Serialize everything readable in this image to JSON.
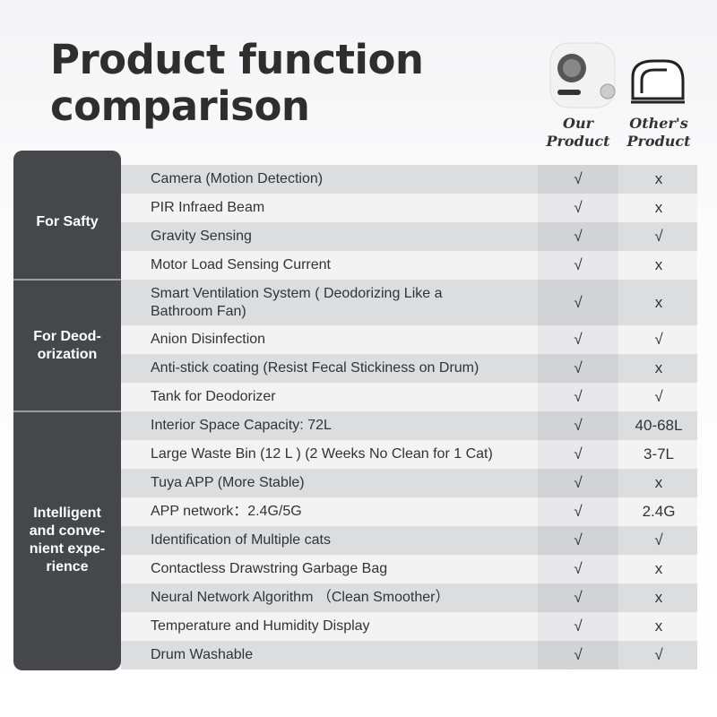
{
  "header": {
    "title_lines": [
      "Product function",
      "comparison"
    ],
    "columns": {
      "ours": [
        "Our",
        "Product"
      ],
      "others": [
        "Other's",
        "Product"
      ]
    }
  },
  "groups": [
    {
      "label": [
        "For Safty"
      ],
      "rows": [
        {
          "feature": [
            "Camera (Motion Detection)"
          ],
          "ours": "√",
          "others": "x"
        },
        {
          "feature": [
            "PIR Infraed Beam"
          ],
          "ours": "√",
          "others": "x"
        },
        {
          "feature": [
            "Gravity Sensing"
          ],
          "ours": "√",
          "others": "√"
        },
        {
          "feature": [
            "Motor Load Sensing Current"
          ],
          "ours": "√",
          "others": "x"
        }
      ]
    },
    {
      "label": [
        "For Deod-",
        "orization"
      ],
      "rows": [
        {
          "feature": [
            "Smart Ventilation System ( Deodorizing Like a",
            "Bathroom Fan)"
          ],
          "ours": "√",
          "others": "x"
        },
        {
          "feature": [
            "Anion Disinfection"
          ],
          "ours": "√",
          "others": "√"
        },
        {
          "feature": [
            "Anti-stick coating (Resist Fecal Stickiness on Drum)"
          ],
          "ours": "√",
          "others": "x"
        },
        {
          "feature": [
            "Tank for Deodorizer"
          ],
          "ours": "√",
          "others": "√"
        }
      ]
    },
    {
      "label": [
        "Intelligent",
        "and conve-",
        "nient expe-",
        "rience"
      ],
      "rows": [
        {
          "feature": [
            "Interior Space Capacity: 72L"
          ],
          "ours": "√",
          "others": "40-68L"
        },
        {
          "feature": [
            "Large Waste Bin (12 L ) (2 Weeks No Clean for 1 Cat)"
          ],
          "ours": "√",
          "others": "3-7L"
        },
        {
          "feature": [
            "Tuya APP (More Stable)"
          ],
          "ours": "√",
          "others": "x"
        },
        {
          "feature": [
            "APP network：2.4G/5G"
          ],
          "ours": "√",
          "others": "2.4G"
        },
        {
          "feature": [
            "Identification of Multiple cats"
          ],
          "ours": "√",
          "others": "√"
        },
        {
          "feature": [
            "Contactless Drawstring Garbage Bag"
          ],
          "ours": "√",
          "others": "x"
        },
        {
          "feature": [
            "Neural Network Algorithm （Clean Smoother）"
          ],
          "ours": "√",
          "others": "x"
        },
        {
          "feature": [
            "Temperature and Humidity Display"
          ],
          "ours": "√",
          "others": "x"
        },
        {
          "feature": [
            "Drum Washable"
          ],
          "ours": "√",
          "others": "√"
        }
      ]
    }
  ]
}
